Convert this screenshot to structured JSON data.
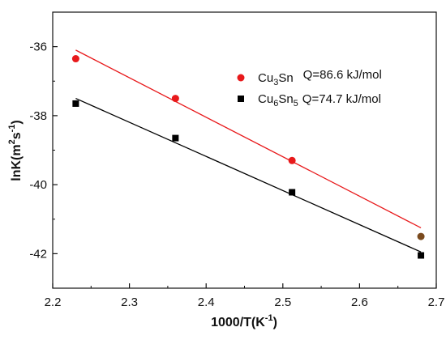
{
  "chart_data": {
    "type": "scatter",
    "xlabel": {
      "main": "1000/T(K",
      "sup": "-1",
      "tail": ")"
    },
    "ylabel": {
      "pre": "lnK(m",
      "sup1": "2",
      "mid": "s",
      "sup2": "-1",
      "tail": ")"
    },
    "xlim": [
      2.2,
      2.7
    ],
    "ylim": [
      -43,
      -35
    ],
    "xticks": [
      "2.2",
      "2.3",
      "2.4",
      "2.5",
      "2.6",
      "2.7"
    ],
    "xtick_values": [
      2.2,
      2.3,
      2.4,
      2.5,
      2.6,
      2.7
    ],
    "yticks": [
      "-36",
      "-38",
      "-40",
      "-42"
    ],
    "ytick_values": [
      -36,
      -38,
      -40,
      -42
    ],
    "legend_position": "top-right",
    "series": [
      {
        "name": {
          "base": "Cu",
          "sub1": "3",
          "mid": "Sn",
          "sub2": "",
          "q": "Q=86.6 kJ/mol"
        },
        "color": "#e8191b",
        "marker": "circle",
        "x": [
          2.23,
          2.36,
          2.512,
          2.68
        ],
        "y": [
          -36.35,
          -37.5,
          -39.3,
          -41.5
        ],
        "fit": {
          "x": [
            2.23,
            2.68
          ],
          "y": [
            -36.1,
            -41.25
          ]
        }
      },
      {
        "name": {
          "base": "Cu",
          "sub1": "6",
          "mid": "Sn",
          "sub2": "5",
          "q": "Q=74.7 kJ/mol"
        },
        "color": "#000000",
        "marker": "square",
        "x": [
          2.23,
          2.36,
          2.512,
          2.68
        ],
        "y": [
          -37.65,
          -38.65,
          -40.22,
          -42.05
        ],
        "fit": {
          "x": [
            2.23,
            2.68
          ],
          "y": [
            -37.5,
            -41.95
          ]
        }
      }
    ]
  }
}
